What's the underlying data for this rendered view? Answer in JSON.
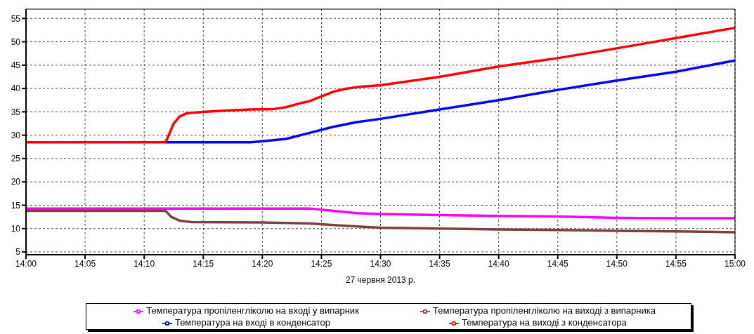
{
  "chart_data": {
    "type": "line",
    "xlabel": "27 червня 2013 р.",
    "xlim": [
      14,
      15
    ],
    "xticks": [
      {
        "value": 14,
        "label": "14:00"
      },
      {
        "value": 14.0833,
        "label": "14:05"
      },
      {
        "value": 14.1667,
        "label": "14:10"
      },
      {
        "value": 14.25,
        "label": "14:15"
      },
      {
        "value": 14.3333,
        "label": "14:20"
      },
      {
        "value": 14.4167,
        "label": "14:25"
      },
      {
        "value": 14.5,
        "label": "14:30"
      },
      {
        "value": 14.5833,
        "label": "14:35"
      },
      {
        "value": 14.6667,
        "label": "14:40"
      },
      {
        "value": 14.75,
        "label": "14:45"
      },
      {
        "value": 14.8333,
        "label": "14:50"
      },
      {
        "value": 14.9167,
        "label": "14:55"
      },
      {
        "value": 15,
        "label": "15:00"
      }
    ],
    "ylim": [
      4.4,
      57
    ],
    "yticks": [
      5,
      10,
      15,
      20,
      25,
      30,
      35,
      40,
      45,
      50,
      55
    ],
    "grid": true,
    "legend": "bottom",
    "marker": "none",
    "line_style": "solid",
    "series": [
      {
        "name": "Температура пропіленгліколю на вході у випарник",
        "color": "#ff00ff",
        "x": [
          14,
          14.4,
          14.4333,
          14.4667,
          14.5,
          14.5833,
          14.6667,
          14.75,
          14.8333,
          14.9167,
          15
        ],
        "values": [
          14.3,
          14.3,
          13.8,
          13.3,
          13.1,
          12.9,
          12.7,
          12.6,
          12.3,
          12.2,
          12.2
        ]
      },
      {
        "name": "Температура пропіленгліколю на виході  з випарника",
        "color": "#804040",
        "x": [
          14,
          14.1967,
          14.205,
          14.2167,
          14.2333,
          14.3333,
          14.4,
          14.45,
          14.5,
          14.5833,
          14.6667,
          14.75,
          14.8333,
          14.9167,
          15
        ],
        "values": [
          13.8,
          13.8,
          12.5,
          11.7,
          11.4,
          11.3,
          11.1,
          10.6,
          10.2,
          10,
          9.8,
          9.7,
          9.5,
          9.4,
          9.2
        ]
      },
      {
        "name": "Температура на вході в конденсатор",
        "color": "#0000ff",
        "x": [
          14.1967,
          14.3167,
          14.3333,
          14.3667,
          14.4,
          14.4333,
          14.4667,
          14.5,
          14.5833,
          14.6667,
          14.75,
          14.8333,
          14.9167,
          15
        ],
        "values": [
          28.5,
          28.5,
          28.7,
          29.2,
          30.5,
          31.8,
          32.8,
          33.5,
          35.5,
          37.5,
          39.7,
          41.7,
          43.6,
          46
        ]
      },
      {
        "name": "Температура на виході  з конденсатора",
        "color": "#ff0000",
        "x": [
          14,
          14.1967,
          14.2,
          14.2083,
          14.2167,
          14.225,
          14.2333,
          14.25,
          14.2833,
          14.3167,
          14.35,
          14.3667,
          14.3833,
          14.4,
          14.4167,
          14.4333,
          14.45,
          14.4667,
          14.5,
          14.5833,
          14.6667,
          14.75,
          14.8333,
          14.9167,
          15
        ],
        "values": [
          28.5,
          28.5,
          29.5,
          32.5,
          34,
          34.6,
          34.8,
          35,
          35.3,
          35.5,
          35.6,
          36,
          36.7,
          37.3,
          38.3,
          39.3,
          39.9,
          40.3,
          40.7,
          42.5,
          44.7,
          46.5,
          48.6,
          50.8,
          53
        ]
      }
    ]
  }
}
